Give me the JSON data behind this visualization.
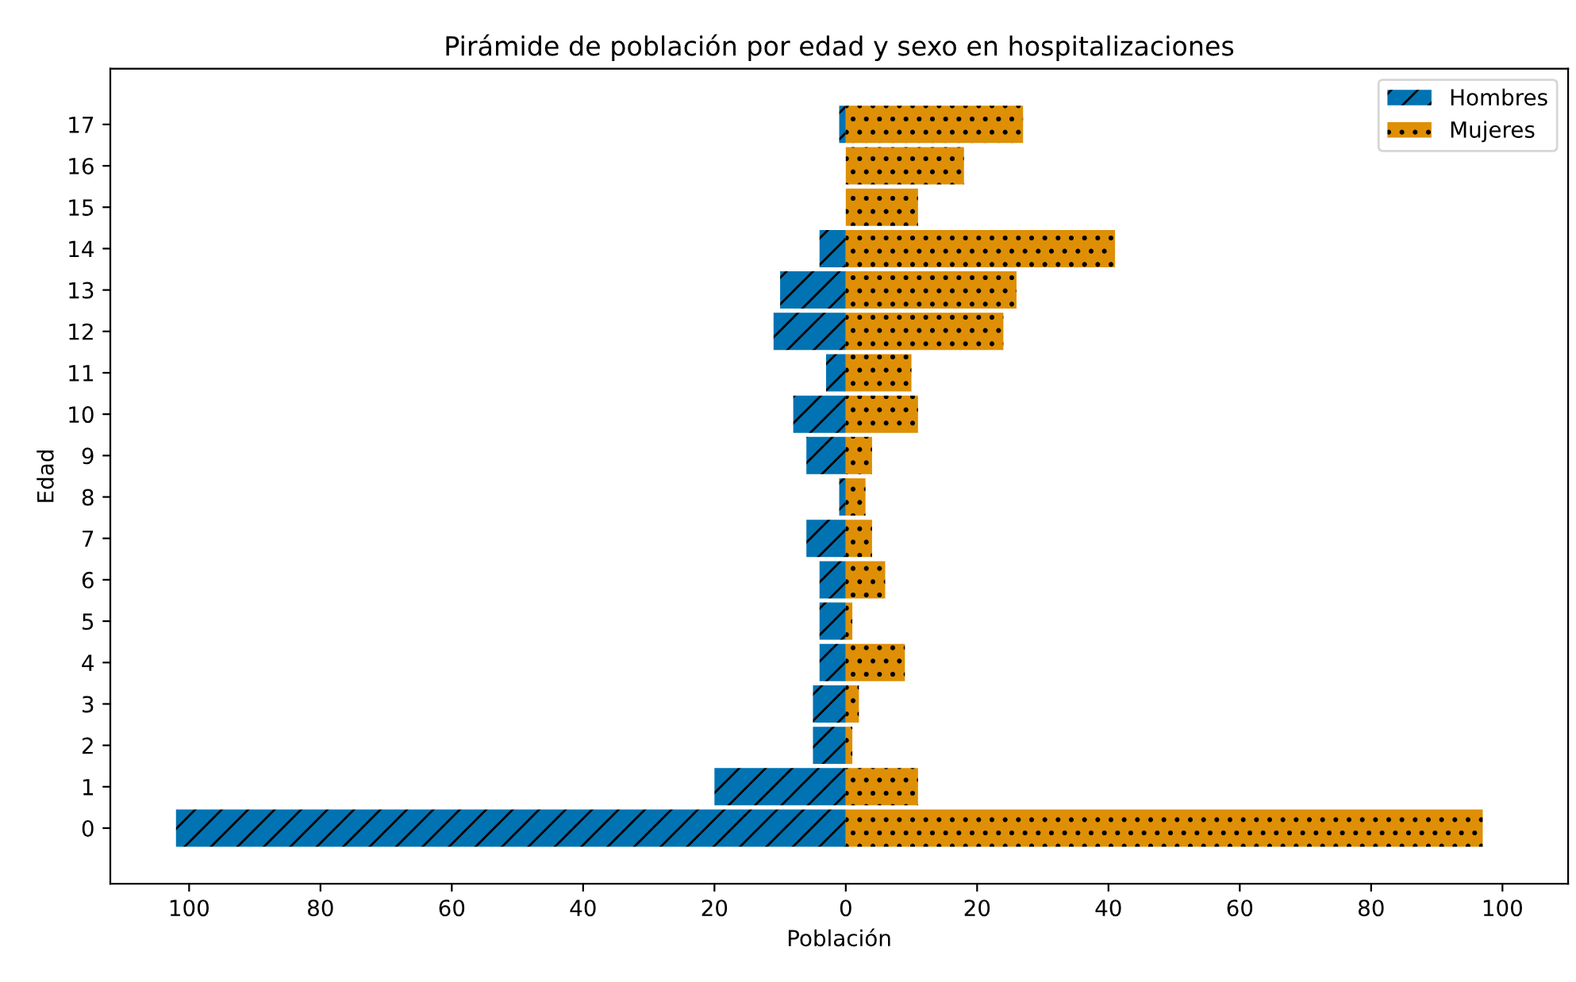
{
  "chart_data": {
    "type": "bar",
    "orientation": "horizontal",
    "title": "Pirámide de población por edad y sexo en hospitalizaciones",
    "xlabel": "Población",
    "ylabel": "Edad",
    "categories": [
      "17",
      "16",
      "15",
      "14",
      "13",
      "12",
      "11",
      "10",
      "9",
      "8",
      "7",
      "6",
      "5",
      "4",
      "3",
      "2",
      "1",
      "0"
    ],
    "series": [
      {
        "name": "Hombres",
        "color": "#0173b2",
        "values": [
          -1,
          0,
          0,
          -4,
          -10,
          -11,
          -3,
          -8,
          -6,
          -1,
          -6,
          -4,
          -4,
          -4,
          -5,
          -5,
          -20,
          -102
        ]
      },
      {
        "name": "Mujeres",
        "color": "#de8f05",
        "values": [
          27,
          18,
          11,
          41,
          26,
          24,
          10,
          11,
          4,
          3,
          4,
          6,
          1,
          9,
          2,
          1,
          11,
          97
        ]
      }
    ],
    "xlim": [
      -112,
      110
    ],
    "xticks": [
      {
        "value": -100,
        "label": "100"
      },
      {
        "value": -80,
        "label": "80"
      },
      {
        "value": -60,
        "label": "60"
      },
      {
        "value": -40,
        "label": "40"
      },
      {
        "value": -20,
        "label": "20"
      },
      0,
      20,
      40,
      60,
      80,
      100
    ],
    "stacked": true,
    "legend": "top right",
    "grid": false
  }
}
